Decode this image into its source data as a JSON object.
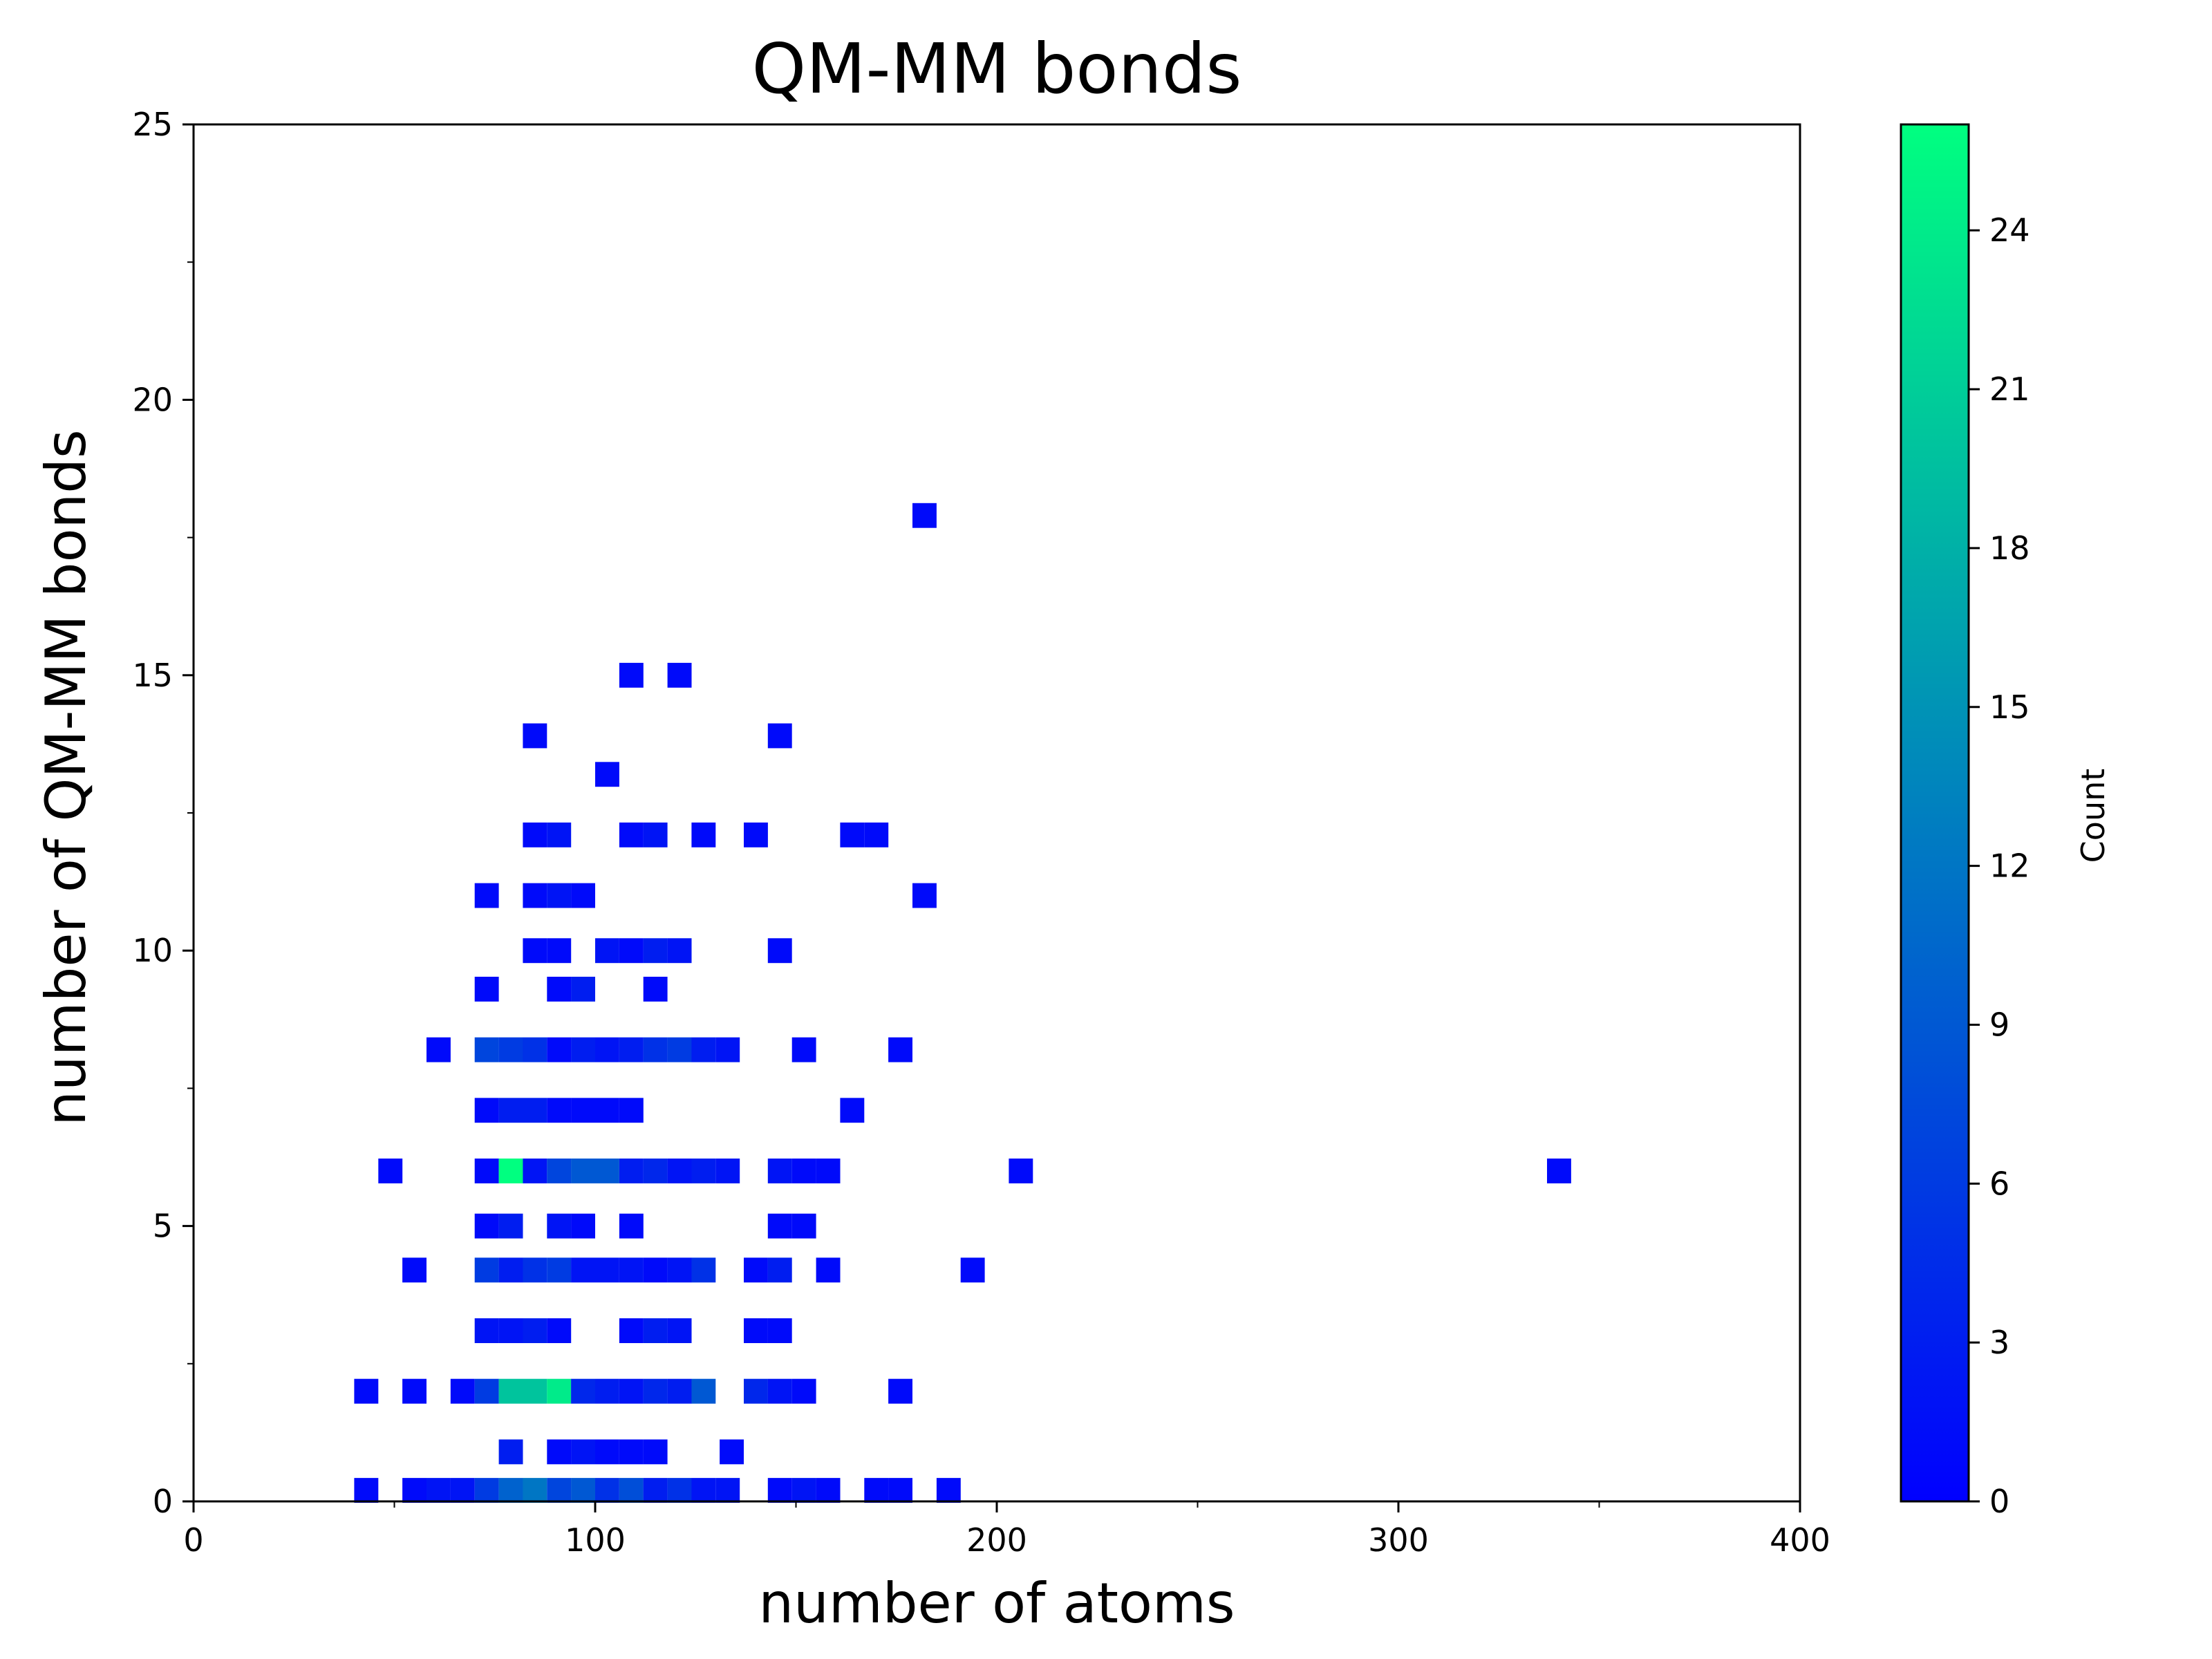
{
  "chart_data": {
    "type": "heatmap",
    "title": "QM-MM bonds",
    "xlabel": "number of atoms",
    "ylabel": "number of QM-MM bonds",
    "xlim": [
      0,
      400
    ],
    "ylim": [
      0,
      25
    ],
    "x_ticks": [
      0,
      100,
      200,
      300,
      400
    ],
    "y_ticks": [
      0,
      5,
      10,
      15,
      20,
      25
    ],
    "colorbar": {
      "label": "Count",
      "range": [
        0,
        26
      ],
      "ticks": [
        0,
        3,
        6,
        9,
        12,
        15,
        18,
        21,
        24
      ],
      "colormap": "winter",
      "color_min": "#0000ff",
      "color_max": "#00ff80"
    },
    "bin_width": 6,
    "bin_height": 0.45,
    "cells": [
      {
        "x": 43,
        "y": 0.2,
        "count": 1
      },
      {
        "x": 55,
        "y": 0.2,
        "count": 1
      },
      {
        "x": 61,
        "y": 0.2,
        "count": 2
      },
      {
        "x": 67,
        "y": 0.2,
        "count": 2
      },
      {
        "x": 73,
        "y": 0.2,
        "count": 6
      },
      {
        "x": 79,
        "y": 0.2,
        "count": 10
      },
      {
        "x": 85,
        "y": 0.2,
        "count": 12
      },
      {
        "x": 91,
        "y": 0.2,
        "count": 7
      },
      {
        "x": 97,
        "y": 0.2,
        "count": 9
      },
      {
        "x": 103,
        "y": 0.2,
        "count": 5
      },
      {
        "x": 109,
        "y": 0.2,
        "count": 8
      },
      {
        "x": 115,
        "y": 0.2,
        "count": 3
      },
      {
        "x": 121,
        "y": 0.2,
        "count": 5
      },
      {
        "x": 127,
        "y": 0.2,
        "count": 2
      },
      {
        "x": 133,
        "y": 0.2,
        "count": 2
      },
      {
        "x": 146,
        "y": 0.2,
        "count": 1
      },
      {
        "x": 152,
        "y": 0.2,
        "count": 2
      },
      {
        "x": 158,
        "y": 0.2,
        "count": 1
      },
      {
        "x": 170,
        "y": 0.2,
        "count": 1
      },
      {
        "x": 176,
        "y": 0.2,
        "count": 1
      },
      {
        "x": 188,
        "y": 0.2,
        "count": 1
      },
      {
        "x": 79,
        "y": 0.9,
        "count": 3
      },
      {
        "x": 91,
        "y": 0.9,
        "count": 1
      },
      {
        "x": 97,
        "y": 0.9,
        "count": 2
      },
      {
        "x": 103,
        "y": 0.9,
        "count": 1
      },
      {
        "x": 109,
        "y": 0.9,
        "count": 1
      },
      {
        "x": 115,
        "y": 0.9,
        "count": 1
      },
      {
        "x": 134,
        "y": 0.9,
        "count": 1
      },
      {
        "x": 43,
        "y": 2.0,
        "count": 1
      },
      {
        "x": 55,
        "y": 2.0,
        "count": 1
      },
      {
        "x": 67,
        "y": 2.0,
        "count": 1
      },
      {
        "x": 73,
        "y": 2.0,
        "count": 6
      },
      {
        "x": 79,
        "y": 2.0,
        "count": 20
      },
      {
        "x": 85,
        "y": 2.0,
        "count": 20
      },
      {
        "x": 91,
        "y": 2.0,
        "count": 24
      },
      {
        "x": 97,
        "y": 2.0,
        "count": 4
      },
      {
        "x": 103,
        "y": 2.0,
        "count": 3
      },
      {
        "x": 109,
        "y": 2.0,
        "count": 2
      },
      {
        "x": 115,
        "y": 2.0,
        "count": 4
      },
      {
        "x": 121,
        "y": 2.0,
        "count": 3
      },
      {
        "x": 127,
        "y": 2.0,
        "count": 9
      },
      {
        "x": 140,
        "y": 2.0,
        "count": 4
      },
      {
        "x": 146,
        "y": 2.0,
        "count": 2
      },
      {
        "x": 152,
        "y": 2.0,
        "count": 1
      },
      {
        "x": 176,
        "y": 2.0,
        "count": 1
      },
      {
        "x": 73,
        "y": 3.1,
        "count": 2
      },
      {
        "x": 79,
        "y": 3.1,
        "count": 2
      },
      {
        "x": 85,
        "y": 3.1,
        "count": 3
      },
      {
        "x": 91,
        "y": 3.1,
        "count": 1
      },
      {
        "x": 109,
        "y": 3.1,
        "count": 1
      },
      {
        "x": 115,
        "y": 3.1,
        "count": 3
      },
      {
        "x": 121,
        "y": 3.1,
        "count": 2
      },
      {
        "x": 140,
        "y": 3.1,
        "count": 1
      },
      {
        "x": 146,
        "y": 3.1,
        "count": 1
      },
      {
        "x": 55,
        "y": 4.2,
        "count": 1
      },
      {
        "x": 73,
        "y": 4.2,
        "count": 6
      },
      {
        "x": 79,
        "y": 4.2,
        "count": 3
      },
      {
        "x": 85,
        "y": 4.2,
        "count": 5
      },
      {
        "x": 91,
        "y": 4.2,
        "count": 6
      },
      {
        "x": 97,
        "y": 4.2,
        "count": 2
      },
      {
        "x": 103,
        "y": 4.2,
        "count": 2
      },
      {
        "x": 109,
        "y": 4.2,
        "count": 2
      },
      {
        "x": 115,
        "y": 4.2,
        "count": 1
      },
      {
        "x": 121,
        "y": 4.2,
        "count": 2
      },
      {
        "x": 127,
        "y": 4.2,
        "count": 5
      },
      {
        "x": 140,
        "y": 4.2,
        "count": 1
      },
      {
        "x": 146,
        "y": 4.2,
        "count": 3
      },
      {
        "x": 158,
        "y": 4.2,
        "count": 1
      },
      {
        "x": 194,
        "y": 4.2,
        "count": 1
      },
      {
        "x": 73,
        "y": 5.0,
        "count": 1
      },
      {
        "x": 79,
        "y": 5.0,
        "count": 3
      },
      {
        "x": 91,
        "y": 5.0,
        "count": 2
      },
      {
        "x": 97,
        "y": 5.0,
        "count": 1
      },
      {
        "x": 109,
        "y": 5.0,
        "count": 1
      },
      {
        "x": 146,
        "y": 5.0,
        "count": 1
      },
      {
        "x": 152,
        "y": 5.0,
        "count": 1
      },
      {
        "x": 49,
        "y": 6.0,
        "count": 1
      },
      {
        "x": 73,
        "y": 6.0,
        "count": 1
      },
      {
        "x": 79,
        "y": 6.0,
        "count": 26
      },
      {
        "x": 85,
        "y": 6.0,
        "count": 2
      },
      {
        "x": 91,
        "y": 6.0,
        "count": 7
      },
      {
        "x": 97,
        "y": 6.0,
        "count": 9
      },
      {
        "x": 103,
        "y": 6.0,
        "count": 9
      },
      {
        "x": 109,
        "y": 6.0,
        "count": 3
      },
      {
        "x": 115,
        "y": 6.0,
        "count": 4
      },
      {
        "x": 121,
        "y": 6.0,
        "count": 2
      },
      {
        "x": 127,
        "y": 6.0,
        "count": 3
      },
      {
        "x": 133,
        "y": 6.0,
        "count": 2
      },
      {
        "x": 146,
        "y": 6.0,
        "count": 2
      },
      {
        "x": 152,
        "y": 6.0,
        "count": 1
      },
      {
        "x": 158,
        "y": 6.0,
        "count": 1
      },
      {
        "x": 206,
        "y": 6.0,
        "count": 1
      },
      {
        "x": 340,
        "y": 6.0,
        "count": 1
      },
      {
        "x": 73,
        "y": 7.1,
        "count": 1
      },
      {
        "x": 79,
        "y": 7.1,
        "count": 3
      },
      {
        "x": 85,
        "y": 7.1,
        "count": 3
      },
      {
        "x": 91,
        "y": 7.1,
        "count": 1
      },
      {
        "x": 97,
        "y": 7.1,
        "count": 1
      },
      {
        "x": 103,
        "y": 7.1,
        "count": 1
      },
      {
        "x": 109,
        "y": 7.1,
        "count": 1
      },
      {
        "x": 164,
        "y": 7.1,
        "count": 1
      },
      {
        "x": 61,
        "y": 8.2,
        "count": 1
      },
      {
        "x": 73,
        "y": 8.2,
        "count": 7
      },
      {
        "x": 79,
        "y": 8.2,
        "count": 6
      },
      {
        "x": 85,
        "y": 8.2,
        "count": 5
      },
      {
        "x": 91,
        "y": 8.2,
        "count": 1
      },
      {
        "x": 97,
        "y": 8.2,
        "count": 3
      },
      {
        "x": 103,
        "y": 8.2,
        "count": 2
      },
      {
        "x": 109,
        "y": 8.2,
        "count": 3
      },
      {
        "x": 115,
        "y": 8.2,
        "count": 5
      },
      {
        "x": 121,
        "y": 8.2,
        "count": 6
      },
      {
        "x": 127,
        "y": 8.2,
        "count": 3
      },
      {
        "x": 133,
        "y": 8.2,
        "count": 2
      },
      {
        "x": 152,
        "y": 8.2,
        "count": 1
      },
      {
        "x": 176,
        "y": 8.2,
        "count": 1
      },
      {
        "x": 73,
        "y": 9.3,
        "count": 1
      },
      {
        "x": 91,
        "y": 9.3,
        "count": 1
      },
      {
        "x": 97,
        "y": 9.3,
        "count": 3
      },
      {
        "x": 115,
        "y": 9.3,
        "count": 1
      },
      {
        "x": 85,
        "y": 10.0,
        "count": 1
      },
      {
        "x": 91,
        "y": 10.0,
        "count": 1
      },
      {
        "x": 103,
        "y": 10.0,
        "count": 2
      },
      {
        "x": 109,
        "y": 10.0,
        "count": 1
      },
      {
        "x": 115,
        "y": 10.0,
        "count": 3
      },
      {
        "x": 121,
        "y": 10.0,
        "count": 2
      },
      {
        "x": 146,
        "y": 10.0,
        "count": 1
      },
      {
        "x": 73,
        "y": 11.0,
        "count": 1
      },
      {
        "x": 85,
        "y": 11.0,
        "count": 1
      },
      {
        "x": 91,
        "y": 11.0,
        "count": 2
      },
      {
        "x": 97,
        "y": 11.0,
        "count": 1
      },
      {
        "x": 182,
        "y": 11.0,
        "count": 1
      },
      {
        "x": 85,
        "y": 12.1,
        "count": 1
      },
      {
        "x": 91,
        "y": 12.1,
        "count": 2
      },
      {
        "x": 109,
        "y": 12.1,
        "count": 1
      },
      {
        "x": 115,
        "y": 12.1,
        "count": 2
      },
      {
        "x": 127,
        "y": 12.1,
        "count": 1
      },
      {
        "x": 140,
        "y": 12.1,
        "count": 1
      },
      {
        "x": 164,
        "y": 12.1,
        "count": 1
      },
      {
        "x": 170,
        "y": 12.1,
        "count": 1
      },
      {
        "x": 103,
        "y": 13.2,
        "count": 1
      },
      {
        "x": 85,
        "y": 13.9,
        "count": 1
      },
      {
        "x": 146,
        "y": 13.9,
        "count": 1
      },
      {
        "x": 109,
        "y": 15.0,
        "count": 1
      },
      {
        "x": 121,
        "y": 15.0,
        "count": 1
      },
      {
        "x": 182,
        "y": 17.9,
        "count": 1
      }
    ]
  }
}
